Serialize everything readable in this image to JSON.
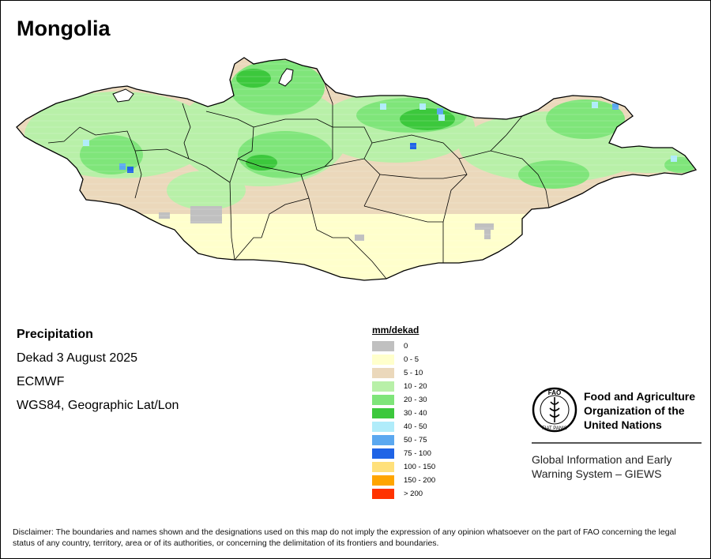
{
  "title": "Mongolia",
  "info": {
    "variable": "Precipitation",
    "period": "Dekad 3 August 2025",
    "source": "ECMWF",
    "projection": "WGS84, Geographic Lat/Lon"
  },
  "legend": {
    "unit": "mm/dekad",
    "classes": [
      {
        "label": "0",
        "color": "#c0c0c0"
      },
      {
        "label": "0 - 5",
        "color": "#ffffcc"
      },
      {
        "label": "5 - 10",
        "color": "#ebd8bb"
      },
      {
        "label": "10 - 20",
        "color": "#b8f0a8"
      },
      {
        "label": "20 - 30",
        "color": "#7fe57a"
      },
      {
        "label": "30 - 40",
        "color": "#3cc83c"
      },
      {
        "label": "40 - 50",
        "color": "#b0ecfa"
      },
      {
        "label": "50 - 75",
        "color": "#5ba8f0"
      },
      {
        "label": "75 - 100",
        "color": "#1f64e6"
      },
      {
        "label": "100 - 150",
        "color": "#ffe07a"
      },
      {
        "label": "150 - 200",
        "color": "#ffa500"
      },
      {
        "label": "> 200",
        "color": "#ff3300"
      }
    ]
  },
  "organization": {
    "logo_icon": "fao-logo-icon",
    "logo_text": "FAO",
    "logo_motto": "FIAT PANIS",
    "name_lines": [
      "Food and Agriculture",
      "Organization of the",
      "United Nations"
    ],
    "system_lines": [
      "Global Information and Early",
      "Warning System – GIEWS"
    ]
  },
  "disclaimer": "Disclaimer: The boundaries and names shown and the designations used on this map do not imply the expression of any opinion whatsoever on the part of FAO concerning the legal status of any country, territory, area or of its authorities, or concerning the delimitation of its frontiers and boundaries.",
  "map_data": {
    "country_outline_icon": "mongolia-outline",
    "lake_icon": "khuvsgul-lake",
    "dominant_classes": [
      "0 - 5",
      "5 - 10",
      "10 - 20",
      "20 - 30",
      "30 - 40"
    ]
  }
}
